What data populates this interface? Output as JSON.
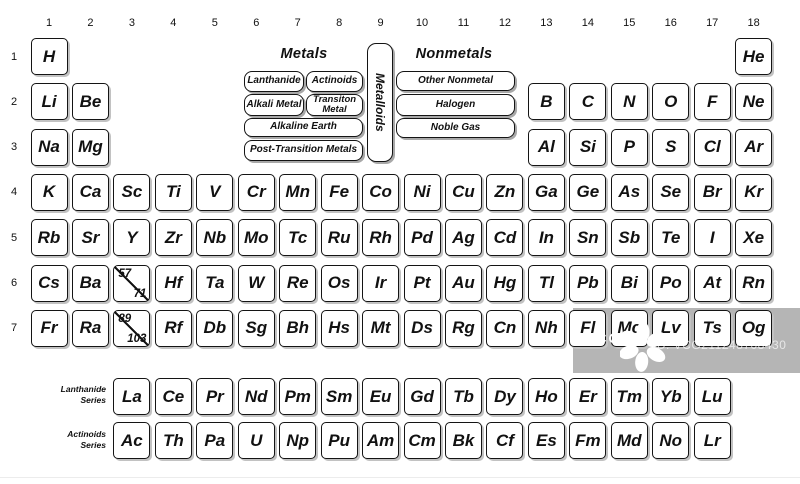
{
  "column_headers": [
    "1",
    "2",
    "3",
    "4",
    "5",
    "6",
    "7",
    "8",
    "9",
    "10",
    "11",
    "12",
    "13",
    "14",
    "15",
    "16",
    "17",
    "18"
  ],
  "row_headers": [
    "1",
    "2",
    "3",
    "4",
    "5",
    "6",
    "7"
  ],
  "legend": {
    "metals_title": "Metals",
    "nonmetals_title": "Nonmetals",
    "metalloids_label": "Metalloids",
    "metal_items": {
      "lanthanide": "Lanthanide",
      "actinoids": "Actinoids",
      "alkali_metal": "Alkali Metal",
      "transition_metal": "Transiton Metal",
      "alkaline_earth": "Alkaline Earth",
      "post_transition": "Post-Transition Metals"
    },
    "nonmetal_items": {
      "other_nonmetal": "Other Nonmetal",
      "halogen": "Halogen",
      "noble_gas": "Noble Gas"
    }
  },
  "table": {
    "segments": [
      {
        "row": 1,
        "start": 1,
        "syms": [
          "H"
        ]
      },
      {
        "row": 1,
        "start": 18,
        "syms": [
          "He"
        ]
      },
      {
        "row": 2,
        "start": 1,
        "syms": [
          "Li",
          "Be"
        ]
      },
      {
        "row": 2,
        "start": 13,
        "syms": [
          "B",
          "C",
          "N",
          "O",
          "F",
          "Ne"
        ]
      },
      {
        "row": 3,
        "start": 1,
        "syms": [
          "Na",
          "Mg"
        ]
      },
      {
        "row": 3,
        "start": 13,
        "syms": [
          "Al",
          "Si",
          "P",
          "S",
          "Cl",
          "Ar"
        ]
      },
      {
        "row": 4,
        "start": 1,
        "syms": [
          "K",
          "Ca",
          "Sc",
          "Ti",
          "V",
          "Cr",
          "Mn",
          "Fe",
          "Co",
          "Ni",
          "Cu",
          "Zn",
          "Ga",
          "Ge",
          "As",
          "Se",
          "Br",
          "Kr"
        ]
      },
      {
        "row": 5,
        "start": 1,
        "syms": [
          "Rb",
          "Sr",
          "Y",
          "Zr",
          "Nb",
          "Mo",
          "Tc",
          "Ru",
          "Rh",
          "Pd",
          "Ag",
          "Cd",
          "In",
          "Sn",
          "Sb",
          "Te",
          "I",
          "Xe"
        ]
      },
      {
        "row": 6,
        "start": 1,
        "syms": [
          "Cs",
          "Ba"
        ]
      },
      {
        "row": 6,
        "start": 4,
        "syms": [
          "Hf",
          "Ta",
          "W",
          "Re",
          "Os",
          "Ir",
          "Pt",
          "Au",
          "Hg",
          "Tl",
          "Pb",
          "Bi",
          "Po",
          "At",
          "Rn"
        ]
      },
      {
        "row": 7,
        "start": 1,
        "syms": [
          "Fr",
          "Ra"
        ]
      },
      {
        "row": 7,
        "start": 4,
        "syms": [
          "Rf",
          "Db",
          "Sg",
          "Bh",
          "Hs",
          "Mt",
          "Ds",
          "Rg",
          "Cn",
          "Nh",
          "Fl",
          "Mc",
          "Lv",
          "Ts",
          "Og"
        ]
      }
    ],
    "range_cells": [
      {
        "row": 6,
        "col": 3,
        "top": "57",
        "bottom": "71"
      },
      {
        "row": 7,
        "col": 3,
        "top": "89",
        "bottom": "103"
      }
    ]
  },
  "series": {
    "lanthanide": {
      "label": [
        "Lanthanide",
        "Series"
      ],
      "syms": [
        "La",
        "Ce",
        "Pr",
        "Nd",
        "Pm",
        "Sm",
        "Eu",
        "Gd",
        "Tb",
        "Dy",
        "Ho",
        "Er",
        "Tm",
        "Yb",
        "Lu"
      ]
    },
    "actinoid": {
      "label": [
        "Actinoids",
        "Series"
      ],
      "syms": [
        "Ac",
        "Th",
        "Pa",
        "U",
        "Np",
        "Pu",
        "Am",
        "Cm",
        "Bk",
        "Cf",
        "Es",
        "Fm",
        "Md",
        "No",
        "Lr"
      ]
    }
  },
  "watermark": {
    "logo_text": "VCG",
    "id_text": "ID: VCG211248708430"
  }
}
